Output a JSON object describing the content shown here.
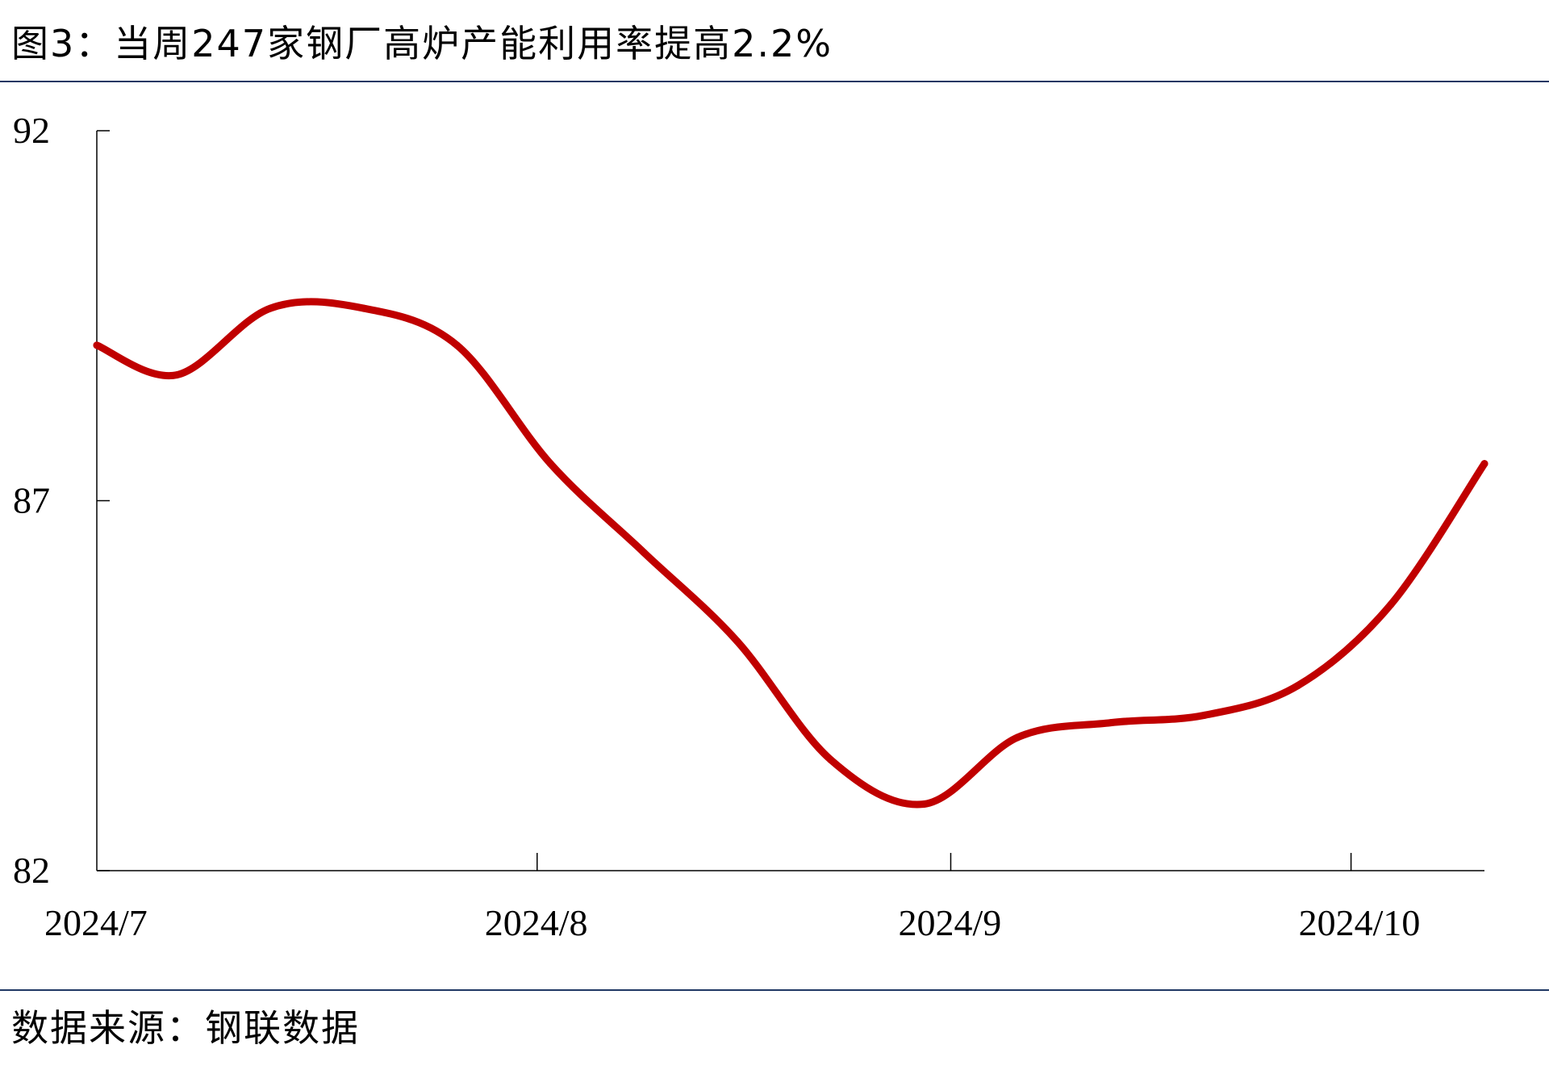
{
  "header": {
    "title": "图3：当周247家钢厂高炉产能利用率提高2.2%"
  },
  "footer": {
    "source": "数据来源：钢联数据"
  },
  "chart_data": {
    "type": "line",
    "title": "图3：当周247家钢厂高炉产能利用率提高2.2%",
    "xlabel": "",
    "ylabel": "",
    "ylim": [
      82,
      92
    ],
    "yticks": [
      82,
      87,
      92
    ],
    "xlim": [
      "2024-06-29",
      "2024-10-11"
    ],
    "xticks": [
      {
        "date": "2024-07-01",
        "label": "2024/7"
      },
      {
        "date": "2024-08-01",
        "label": "2024/8"
      },
      {
        "date": "2024-09-01",
        "label": "2024/9"
      },
      {
        "date": "2024-10-01",
        "label": "2024/10"
      }
    ],
    "grid": false,
    "legend": "none",
    "series": [
      {
        "color": "#c00000",
        "x": [
          "2024-06-29",
          "2024-07-05",
          "2024-07-12",
          "2024-07-19",
          "2024-07-26",
          "2024-08-02",
          "2024-08-09",
          "2024-08-16",
          "2024-08-23",
          "2024-08-30",
          "2024-09-06",
          "2024-09-13",
          "2024-09-20",
          "2024-09-27",
          "2024-10-04",
          "2024-10-11"
        ],
        "y": [
          89.1,
          88.7,
          89.6,
          89.6,
          89.1,
          87.5,
          86.3,
          85.1,
          83.5,
          82.9,
          83.8,
          84.0,
          84.1,
          84.5,
          85.6,
          87.5
        ]
      }
    ]
  }
}
